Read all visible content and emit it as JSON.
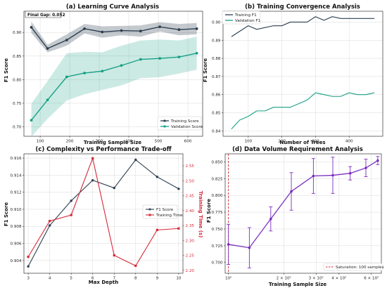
{
  "chart_data": [
    {
      "type": "line",
      "title": "(a) Learning Curve Analysis",
      "xlabel": "Training Sample Size",
      "ylabel": "F1 Score",
      "xlim": [
        45,
        650
      ],
      "ylim": [
        0.68,
        0.945
      ],
      "xticks": [
        100,
        200,
        300,
        400,
        500,
        600
      ],
      "yticks": [
        0.7,
        0.75,
        0.8,
        0.85,
        0.9
      ],
      "tick_decimals": 2,
      "grid": true,
      "annotation": "Final Gap: 0.052",
      "legend_position": "bottom-right",
      "series": [
        {
          "name": "Training Score",
          "color": "#2c3e50",
          "x": [
            70,
            125,
            190,
            250,
            310,
            375,
            440,
            505,
            570,
            630
          ],
          "y": [
            0.911,
            0.866,
            0.884,
            0.908,
            0.901,
            0.904,
            0.903,
            0.912,
            0.906,
            0.908
          ],
          "band": [
            0.012,
            0.008,
            0.012,
            0.01,
            0.012,
            0.01,
            0.012,
            0.01,
            0.012,
            0.012
          ]
        },
        {
          "name": "Validation Score",
          "color": "#16a085",
          "x": [
            70,
            125,
            190,
            250,
            310,
            375,
            440,
            505,
            570,
            630
          ],
          "y": [
            0.714,
            0.757,
            0.806,
            0.814,
            0.818,
            0.83,
            0.843,
            0.845,
            0.848,
            0.856
          ],
          "band": [
            0.035,
            0.04,
            0.05,
            0.045,
            0.04,
            0.042,
            0.04,
            0.04,
            0.035,
            0.035
          ]
        }
      ]
    },
    {
      "type": "line",
      "title": "(b) Training Convergence Analysis",
      "xlabel": "Number of Trees",
      "ylabel": "F1 Score",
      "xlim": [
        25,
        500
      ],
      "ylim": [
        0.837,
        0.906
      ],
      "xticks": [
        100,
        200,
        300,
        400
      ],
      "yticks": [
        0.84,
        0.85,
        0.86,
        0.87,
        0.88,
        0.89,
        0.9
      ],
      "tick_decimals": 2,
      "grid": true,
      "legend_position": "top-left",
      "series": [
        {
          "name": "Training F1",
          "color": "#2c3e50",
          "x": [
            50,
            75,
            100,
            125,
            150,
            175,
            200,
            225,
            250,
            275,
            300,
            325,
            350,
            375,
            400,
            425,
            450,
            475
          ],
          "y": [
            0.892,
            0.895,
            0.898,
            0.896,
            0.897,
            0.898,
            0.898,
            0.9,
            0.9,
            0.9,
            0.903,
            0.901,
            0.903,
            0.902,
            0.902,
            0.902,
            0.902,
            0.902
          ]
        },
        {
          "name": "Validation F1",
          "color": "#16a085",
          "x": [
            50,
            75,
            100,
            125,
            150,
            175,
            200,
            225,
            250,
            275,
            300,
            325,
            350,
            375,
            400,
            425,
            450,
            475
          ],
          "y": [
            0.841,
            0.846,
            0.848,
            0.851,
            0.851,
            0.853,
            0.853,
            0.853,
            0.855,
            0.857,
            0.861,
            0.86,
            0.859,
            0.859,
            0.861,
            0.86,
            0.86,
            0.861
          ]
        }
      ]
    },
    {
      "type": "line",
      "title": "(c) Complexity vs Performance Trade-off",
      "xlabel": "Max Depth",
      "ylabel": "F1 Score",
      "y2label": "Training Time (s)",
      "xlim": [
        2.8,
        10.2
      ],
      "ylim": [
        0.9025,
        0.9165
      ],
      "y2lim": [
        2.19,
        2.59
      ],
      "xticks": [
        3,
        4,
        5,
        6,
        7,
        8,
        9,
        10
      ],
      "yticks": [
        0.904,
        0.906,
        0.908,
        0.91,
        0.912,
        0.914,
        0.916
      ],
      "y2ticks": [
        2.2,
        2.25,
        2.3,
        2.35,
        2.4,
        2.45,
        2.5,
        2.55
      ],
      "tick_decimals": 3,
      "y2_tick_decimals": 2,
      "grid": true,
      "legend_position": "center-right",
      "series": [
        {
          "name": "F1 Score",
          "color": "#2c3e50",
          "axis": "left",
          "x": [
            3,
            4,
            5,
            6,
            7,
            8,
            9,
            10
          ],
          "y": [
            0.9033,
            0.9081,
            0.911,
            0.9134,
            0.9125,
            0.9158,
            0.9138,
            0.9124
          ]
        },
        {
          "name": "Training Time",
          "color": "#d62839",
          "axis": "right",
          "x": [
            3,
            4,
            5,
            6,
            7,
            8,
            9,
            10
          ],
          "y": [
            2.245,
            2.365,
            2.385,
            2.575,
            2.25,
            2.215,
            2.335,
            2.34
          ]
        }
      ]
    },
    {
      "type": "line",
      "title": "(d) Data Volume Requirement Analysis",
      "xlabel": "Training Sample Size",
      "ylabel": "F1 Score",
      "xscale": "log",
      "xlim": [
        96,
        680
      ],
      "ylim": [
        0.684,
        0.862
      ],
      "xticks": [
        {
          "value": 100,
          "label": "10²"
        },
        {
          "value": 200,
          "label": "2 × 10²"
        },
        {
          "value": 300,
          "label": "3 × 10²"
        },
        {
          "value": 400,
          "label": "4 × 10²"
        },
        {
          "value": 600,
          "label": "6 × 10²"
        }
      ],
      "yticks": [
        0.7,
        0.725,
        0.75,
        0.775,
        0.8,
        0.825,
        0.85
      ],
      "tick_decimals": 3,
      "grid": true,
      "legend_position": "bottom-right",
      "series": [
        {
          "name": "F1",
          "color": "#7b2fbf",
          "x": [
            100,
            130,
            170,
            220,
            290,
            370,
            460,
            560,
            650
          ],
          "y": [
            0.727,
            0.722,
            0.765,
            0.806,
            0.829,
            0.83,
            0.833,
            0.841,
            0.852
          ],
          "err": [
            0.03,
            0.03,
            0.018,
            0.028,
            0.026,
            0.027,
            0.01,
            0.013,
            0.006
          ]
        }
      ],
      "vline": {
        "x": 100,
        "color": "#d62839",
        "label": "Saturation: 100 samples"
      }
    }
  ]
}
